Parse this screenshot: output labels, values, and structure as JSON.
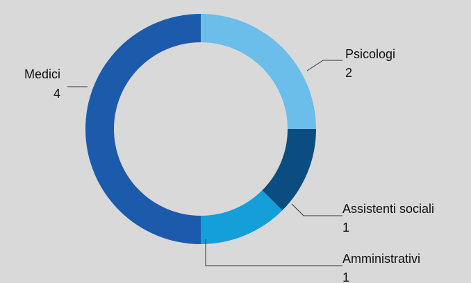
{
  "chart_data": {
    "type": "pie",
    "variant": "donut",
    "title": "",
    "categories": [
      "Psicologi",
      "Assistenti sociali",
      "Amministrativi",
      "Medici"
    ],
    "values": [
      2,
      1,
      1,
      4
    ],
    "colors": [
      "#6bbdea",
      "#0b4d80",
      "#149fd9",
      "#1c5aab"
    ],
    "legend": "none",
    "data_labels": true
  }
}
